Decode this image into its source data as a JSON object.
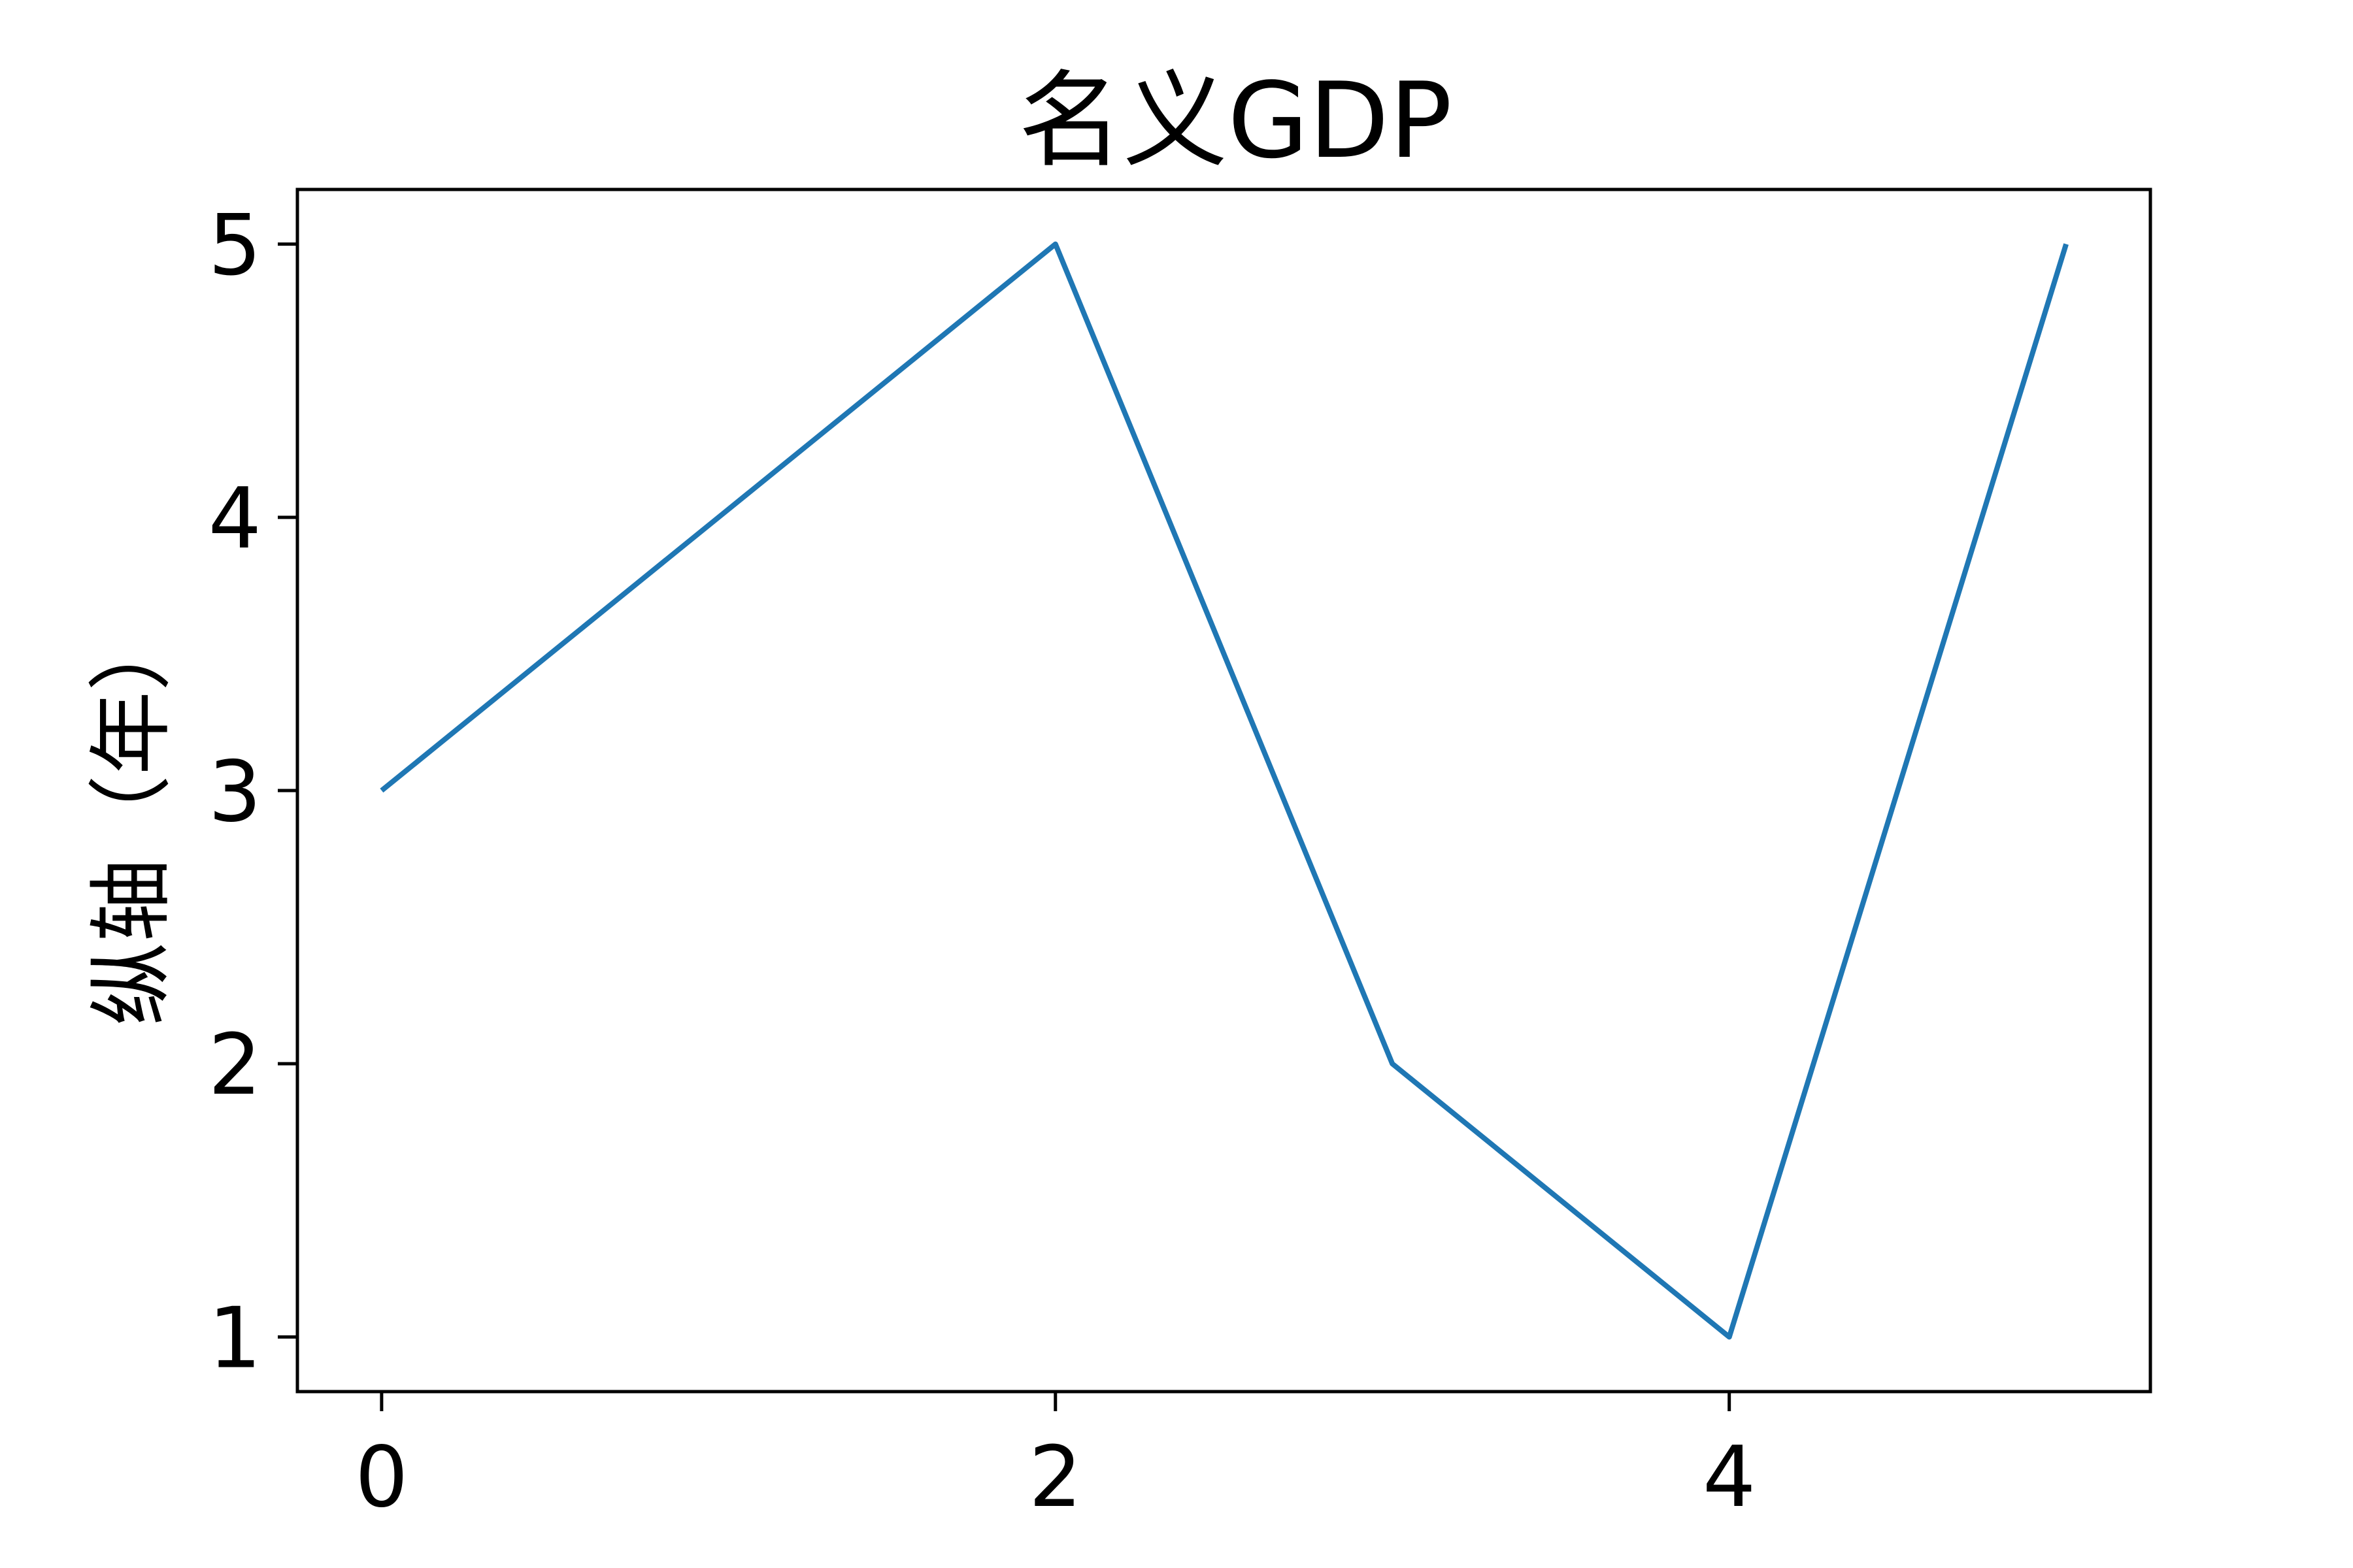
{
  "chart_data": {
    "type": "line",
    "title": "名义GDP",
    "xlabel": "",
    "ylabel": "纵轴（年）",
    "x": [
      0,
      1,
      2,
      3,
      4,
      5
    ],
    "series": [
      {
        "values": [
          3,
          4,
          5,
          2,
          1,
          5
        ],
        "color": "#1f77b4"
      }
    ],
    "xlim": [
      -0.25,
      5.25
    ],
    "ylim": [
      0.8,
      5.2
    ],
    "xticks": [
      0,
      2,
      4
    ],
    "yticks": [
      1,
      2,
      3,
      4,
      5
    ],
    "grid": false,
    "legend": false
  }
}
